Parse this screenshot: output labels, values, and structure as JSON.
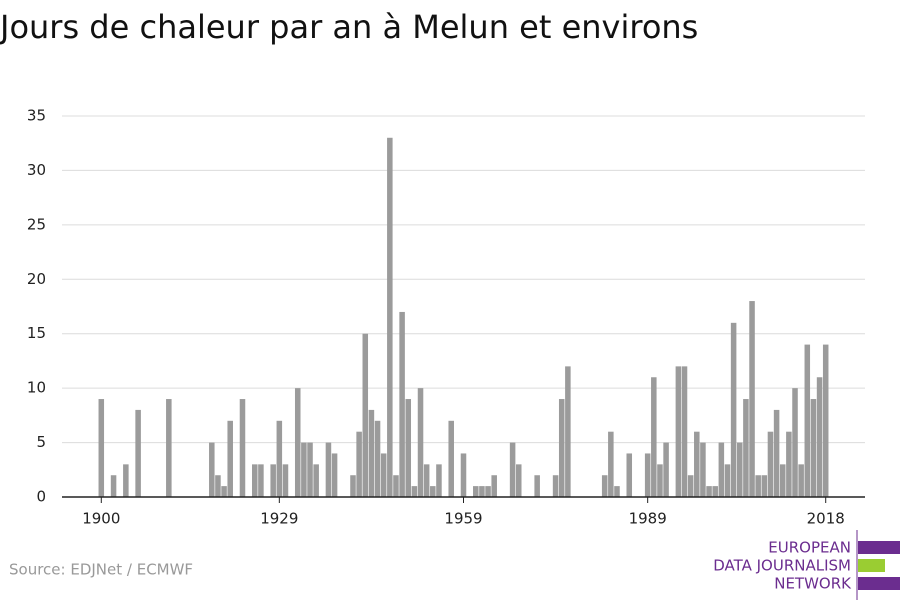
{
  "chart_data": {
    "type": "bar",
    "title": "Jours de chaleur par an à Melun et environs",
    "source": "Source: EDJNet / ECMWF",
    "logo": [
      "EUROPEAN",
      "DATA JOURNALISM",
      "NETWORK"
    ],
    "x": [
      1900,
      1902,
      1904,
      1906,
      1911,
      1918,
      1919,
      1920,
      1921,
      1923,
      1925,
      1926,
      1928,
      1929,
      1930,
      1932,
      1933,
      1934,
      1935,
      1937,
      1938,
      1941,
      1942,
      1943,
      1944,
      1945,
      1946,
      1947,
      1948,
      1949,
      1950,
      1951,
      1952,
      1953,
      1954,
      1955,
      1957,
      1959,
      1961,
      1962,
      1963,
      1964,
      1967,
      1968,
      1971,
      1974,
      1975,
      1976,
      1982,
      1983,
      1984,
      1986,
      1989,
      1990,
      1991,
      1992,
      1994,
      1995,
      1996,
      1997,
      1998,
      1999,
      2000,
      2001,
      2002,
      2003,
      2004,
      2005,
      2006,
      2007,
      2008,
      2009,
      2010,
      2011,
      2012,
      2013,
      2014,
      2015,
      2016,
      2017,
      2018
    ],
    "values": [
      9,
      2,
      3,
      8,
      9,
      5,
      2,
      1,
      7,
      9,
      3,
      3,
      3,
      7,
      3,
      10,
      5,
      5,
      3,
      5,
      4,
      2,
      6,
      15,
      8,
      7,
      4,
      33,
      2,
      17,
      9,
      1,
      10,
      3,
      1,
      3,
      7,
      4,
      1,
      1,
      1,
      2,
      5,
      3,
      2,
      2,
      9,
      12,
      2,
      6,
      1,
      4,
      4,
      11,
      3,
      5,
      12,
      12,
      2,
      6,
      5,
      1,
      1,
      5,
      3,
      16,
      5,
      9,
      18,
      2,
      2,
      6,
      8,
      3,
      6,
      10,
      3,
      14,
      9,
      11,
      14
    ],
    "color": "#9b9b9b",
    "xlim": [
      1893.6,
      2024.4
    ],
    "xticks": [
      1900,
      1929,
      1959,
      1989,
      2018
    ],
    "ylim": [
      0,
      35
    ],
    "yticks": [
      0,
      5,
      10,
      15,
      20,
      25,
      30,
      35
    ],
    "grid": true
  }
}
